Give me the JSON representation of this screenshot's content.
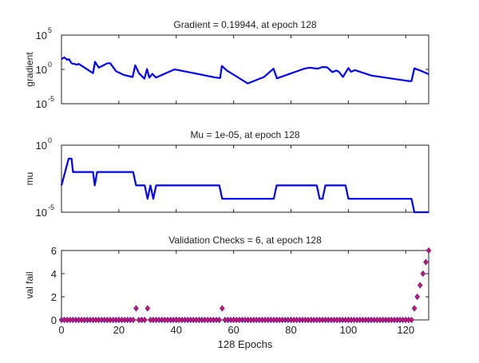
{
  "chart_data": [
    {
      "type": "line",
      "title": "Gradient = 0.19944, at epoch 128",
      "ylabel": "gradient",
      "xlabel": "",
      "xlim": [
        0,
        128
      ],
      "ylim": [
        1e-05,
        100000.0
      ],
      "yscale": "log",
      "yticks": [
        {
          "base": "10",
          "exp": "5",
          "v": 5
        },
        {
          "base": "10",
          "exp": "0",
          "v": 0
        },
        {
          "base": "10",
          "exp": "-5",
          "v": -5
        }
      ],
      "xticks": [
        0,
        20,
        40,
        60,
        80,
        100,
        120
      ],
      "color": "#0000ff",
      "x": [
        0,
        1,
        2,
        2.6,
        3.5,
        5.4,
        6,
        11,
        11.7,
        13,
        16,
        17,
        19,
        21.7,
        24.8,
        25.7,
        27,
        28.9,
        29.8,
        30.6,
        31.7,
        32.9,
        39.4,
        40.8,
        53.9,
        55.3,
        55.9,
        57.6,
        61.3,
        64.9,
        70.6,
        73.9,
        75.1,
        84.6,
        86.5,
        89.3,
        91,
        92.6,
        94.4,
        95.8,
        96.7,
        98.1,
        100,
        100.9,
        102.3,
        108,
        121,
        122,
        123,
        125.6,
        128
      ],
      "log10_y": [
        1.5,
        1.75,
        1.4,
        1.5,
        0.9,
        0.7,
        0.8,
        -0.55,
        1.1,
        0.25,
        0.9,
        0.9,
        -0.25,
        -0.8,
        -1.1,
        0.6,
        -0.55,
        -1.35,
        0.05,
        -1.2,
        -0.65,
        -1.2,
        0,
        -0.1,
        -1.2,
        -1.25,
        0.5,
        -0.15,
        -1.1,
        -2.05,
        -1.1,
        0.1,
        -1.3,
        0.1,
        0.25,
        0.1,
        0.35,
        0.3,
        -0.4,
        -0.15,
        -0.35,
        -1.1,
        0.2,
        -0.35,
        -0.1,
        -0.9,
        -1.7,
        -1.7,
        0.15,
        -0.25,
        -0.7
      ]
    },
    {
      "type": "line",
      "title": "Mu = 1e-05, at epoch 128",
      "ylabel": "mu",
      "xlabel": "",
      "xlim": [
        0,
        128
      ],
      "ylim": [
        1e-05,
        1
      ],
      "yscale": "log",
      "yticks": [
        {
          "base": "10",
          "exp": "0",
          "v": 0
        },
        {
          "base": "10",
          "exp": "-5",
          "v": -5
        }
      ],
      "xticks": [
        0,
        20,
        40,
        60,
        80,
        100,
        120
      ],
      "color": "#0000ff",
      "x": [
        0,
        2.5,
        3.5,
        4,
        11,
        11.6,
        12.4,
        25,
        26,
        29,
        30,
        31,
        32,
        33,
        55,
        56,
        74,
        75,
        89,
        90,
        91,
        92,
        99,
        100,
        122,
        123,
        128
      ],
      "log10_y": [
        -3,
        -1,
        -1,
        -2,
        -2,
        -3,
        -2,
        -2,
        -3,
        -3,
        -4,
        -3,
        -4,
        -3,
        -3,
        -4,
        -4,
        -3,
        -3,
        -4,
        -4,
        -3,
        -3,
        -4,
        -4,
        -5,
        -5
      ]
    },
    {
      "type": "scatter",
      "title": "Validation Checks = 6, at epoch 128",
      "ylabel": "val fail",
      "xlabel": "128 Epochs",
      "xlim": [
        0,
        128
      ],
      "ylim": [
        0,
        6
      ],
      "yticks": [
        0,
        2,
        4,
        6
      ],
      "xticks": [
        0,
        20,
        40,
        60,
        80,
        100,
        120
      ],
      "marker": "diamond",
      "marker_face": "#e0105a",
      "marker_edge": "#2020c0",
      "nonzero": {
        "26": 1,
        "30": 1,
        "56": 1,
        "123": 1,
        "124": 2,
        "125": 3,
        "126": 4,
        "127": 5,
        "128": 6
      }
    }
  ]
}
